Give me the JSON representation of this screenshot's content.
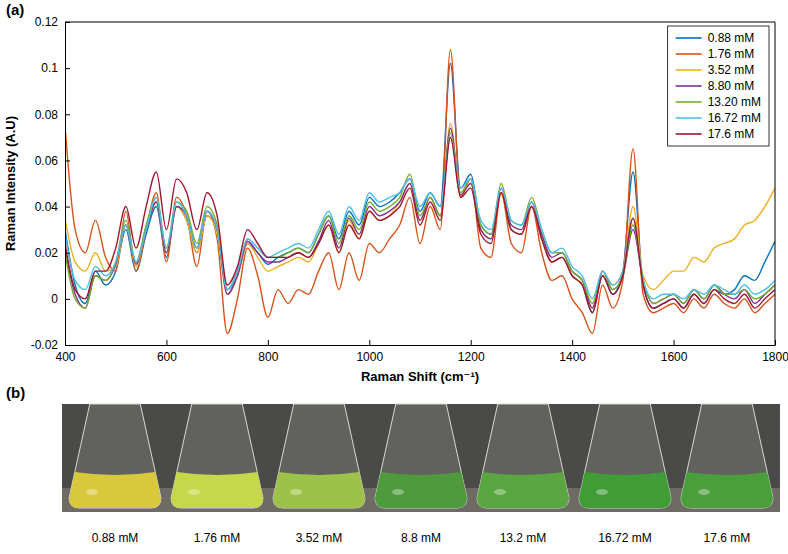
{
  "chart_data": {
    "type": "line",
    "title": "(a)",
    "x_label": "Raman Shift (cm⁻¹)",
    "y_label": "Raman Intensity (A.U)",
    "xlim": [
      400,
      1800
    ],
    "xticks": [
      400,
      600,
      800,
      1000,
      1200,
      1400,
      1600,
      1800
    ],
    "ylim": [
      -0.02,
      0.12
    ],
    "yticks": [
      -0.02,
      0,
      0.02,
      0.04,
      0.06,
      0.08,
      0.1,
      0.12
    ],
    "grid": false,
    "legend": "top-right",
    "x": [
      400,
      420,
      440,
      460,
      480,
      500,
      520,
      540,
      560,
      580,
      600,
      620,
      640,
      660,
      680,
      700,
      720,
      740,
      760,
      780,
      800,
      820,
      840,
      860,
      880,
      900,
      920,
      940,
      960,
      980,
      1000,
      1020,
      1040,
      1060,
      1080,
      1100,
      1120,
      1140,
      1160,
      1180,
      1200,
      1220,
      1240,
      1260,
      1280,
      1300,
      1320,
      1340,
      1360,
      1380,
      1400,
      1420,
      1440,
      1460,
      1480,
      1500,
      1520,
      1540,
      1560,
      1580,
      1600,
      1620,
      1640,
      1660,
      1680,
      1700,
      1720,
      1740,
      1760,
      1780,
      1800
    ],
    "series": [
      {
        "name": "0.88 mM",
        "color": "#0072bd",
        "values": [
          0.03,
          0.006,
          -0.002,
          0.012,
          0.006,
          0.012,
          0.03,
          0.012,
          0.028,
          0.04,
          0.018,
          0.04,
          0.034,
          0.02,
          0.036,
          0.03,
          0.004,
          0.01,
          0.024,
          0.02,
          0.015,
          0.018,
          0.02,
          0.022,
          0.02,
          0.028,
          0.036,
          0.026,
          0.038,
          0.032,
          0.044,
          0.04,
          0.042,
          0.046,
          0.052,
          0.038,
          0.046,
          0.04,
          0.102,
          0.048,
          0.054,
          0.032,
          0.028,
          0.046,
          0.03,
          0.028,
          0.04,
          0.026,
          0.016,
          0.018,
          0.01,
          0.006,
          -0.006,
          0.01,
          0.002,
          0.012,
          0.055,
          0.006,
          -0.004,
          -0.002,
          0.0,
          -0.004,
          0.002,
          -0.002,
          0.004,
          0.002,
          0.004,
          0.01,
          0.008,
          0.016,
          0.025
        ]
      },
      {
        "name": "1.76 mM",
        "color": "#d95319",
        "values": [
          0.075,
          0.03,
          0.02,
          0.034,
          0.018,
          0.012,
          0.038,
          0.012,
          0.03,
          0.046,
          0.016,
          0.044,
          0.036,
          0.014,
          0.038,
          0.026,
          -0.015,
          0.0,
          0.022,
          0.01,
          -0.008,
          0.004,
          -0.002,
          0.004,
          0.002,
          0.012,
          0.02,
          0.004,
          0.02,
          0.008,
          0.024,
          0.02,
          0.026,
          0.032,
          0.044,
          0.024,
          0.04,
          0.03,
          0.108,
          0.044,
          0.052,
          0.022,
          0.018,
          0.046,
          0.024,
          0.02,
          0.04,
          0.02,
          0.008,
          0.01,
          0.0,
          -0.006,
          -0.015,
          0.006,
          -0.004,
          0.008,
          0.065,
          0.002,
          -0.006,
          -0.004,
          -0.002,
          -0.006,
          0.0,
          -0.004,
          0.002,
          -0.002,
          -0.004,
          0.0,
          -0.006,
          -0.002,
          0.002
        ]
      },
      {
        "name": "3.52 mM",
        "color": "#edb120",
        "values": [
          0.035,
          0.016,
          0.012,
          0.02,
          0.012,
          0.014,
          0.032,
          0.014,
          0.03,
          0.042,
          0.02,
          0.04,
          0.034,
          0.02,
          0.036,
          0.028,
          0.002,
          0.01,
          0.024,
          0.018,
          0.012,
          0.014,
          0.016,
          0.018,
          0.016,
          0.024,
          0.032,
          0.02,
          0.034,
          0.026,
          0.038,
          0.034,
          0.036,
          0.042,
          0.05,
          0.034,
          0.044,
          0.036,
          0.076,
          0.046,
          0.05,
          0.03,
          0.026,
          0.046,
          0.03,
          0.028,
          0.04,
          0.026,
          0.016,
          0.018,
          0.01,
          0.006,
          -0.004,
          0.012,
          0.006,
          0.012,
          0.04,
          0.01,
          0.004,
          0.008,
          0.012,
          0.012,
          0.018,
          0.016,
          0.022,
          0.024,
          0.026,
          0.032,
          0.034,
          0.04,
          0.048
        ]
      },
      {
        "name": "8.80 mM",
        "color": "#7e2f8e",
        "values": [
          0.022,
          0.002,
          -0.004,
          0.01,
          0.008,
          0.015,
          0.032,
          0.015,
          0.03,
          0.042,
          0.02,
          0.04,
          0.036,
          0.022,
          0.038,
          0.03,
          0.002,
          0.01,
          0.025,
          0.02,
          0.016,
          0.016,
          0.018,
          0.02,
          0.018,
          0.025,
          0.034,
          0.022,
          0.035,
          0.028,
          0.04,
          0.036,
          0.038,
          0.042,
          0.05,
          0.034,
          0.044,
          0.036,
          0.074,
          0.045,
          0.05,
          0.03,
          0.026,
          0.048,
          0.032,
          0.03,
          0.042,
          0.028,
          0.018,
          0.02,
          0.012,
          0.008,
          -0.004,
          0.012,
          0.004,
          0.01,
          0.03,
          0.008,
          -0.002,
          0.0,
          0.002,
          -0.002,
          0.004,
          0.0,
          0.006,
          0.002,
          0.0,
          0.004,
          -0.002,
          0.002,
          0.006
        ]
      },
      {
        "name": "13.20 mM",
        "color": "#77ac30",
        "values": [
          0.02,
          0.0,
          -0.004,
          0.01,
          0.008,
          0.016,
          0.034,
          0.016,
          0.032,
          0.044,
          0.022,
          0.042,
          0.038,
          0.024,
          0.04,
          0.032,
          0.004,
          0.012,
          0.026,
          0.022,
          0.018,
          0.018,
          0.02,
          0.022,
          0.02,
          0.028,
          0.036,
          0.024,
          0.036,
          0.03,
          0.042,
          0.038,
          0.04,
          0.044,
          0.054,
          0.036,
          0.044,
          0.036,
          0.072,
          0.046,
          0.052,
          0.032,
          0.028,
          0.05,
          0.034,
          0.032,
          0.044,
          0.03,
          0.02,
          0.02,
          0.012,
          0.008,
          -0.002,
          0.012,
          0.004,
          0.01,
          0.032,
          0.008,
          -0.002,
          0.0,
          0.002,
          -0.002,
          0.004,
          0.0,
          0.006,
          0.002,
          0.002,
          0.004,
          0.0,
          0.002,
          0.006
        ]
      },
      {
        "name": "16.72 mM",
        "color": "#4dbeee",
        "values": [
          0.028,
          0.008,
          0.004,
          0.014,
          0.01,
          0.016,
          0.032,
          0.016,
          0.03,
          0.044,
          0.022,
          0.042,
          0.036,
          0.022,
          0.038,
          0.03,
          0.004,
          0.012,
          0.026,
          0.022,
          0.018,
          0.02,
          0.022,
          0.024,
          0.022,
          0.03,
          0.038,
          0.028,
          0.04,
          0.034,
          0.046,
          0.042,
          0.044,
          0.046,
          0.052,
          0.04,
          0.046,
          0.04,
          0.07,
          0.048,
          0.052,
          0.034,
          0.03,
          0.048,
          0.034,
          0.032,
          0.042,
          0.03,
          0.02,
          0.022,
          0.014,
          0.01,
          0.0,
          0.012,
          0.006,
          0.012,
          0.035,
          0.008,
          0.0,
          0.002,
          0.002,
          0.0,
          0.004,
          0.002,
          0.006,
          0.004,
          0.002,
          0.006,
          0.002,
          0.004,
          0.008
        ]
      },
      {
        "name": "17.6 mM",
        "color": "#a2142f",
        "values": [
          0.024,
          0.004,
          0.0,
          0.012,
          0.012,
          0.022,
          0.04,
          0.022,
          0.04,
          0.055,
          0.03,
          0.052,
          0.046,
          0.03,
          0.046,
          0.036,
          0.006,
          0.014,
          0.03,
          0.024,
          0.018,
          0.018,
          0.018,
          0.02,
          0.018,
          0.024,
          0.032,
          0.02,
          0.032,
          0.026,
          0.038,
          0.034,
          0.036,
          0.04,
          0.048,
          0.032,
          0.042,
          0.034,
          0.07,
          0.044,
          0.048,
          0.028,
          0.024,
          0.046,
          0.03,
          0.028,
          0.04,
          0.026,
          0.016,
          0.018,
          0.01,
          0.006,
          -0.006,
          0.01,
          0.002,
          0.01,
          0.035,
          0.006,
          -0.004,
          -0.002,
          0.0,
          -0.004,
          0.002,
          -0.002,
          0.004,
          0.0,
          -0.002,
          0.002,
          -0.004,
          0.0,
          0.004
        ]
      }
    ]
  },
  "photo": {
    "title": "(b)",
    "captions": [
      "0.88 mM",
      "1.76 mM",
      "3.52 mM",
      "8.8 mM",
      "13.2 mM",
      "16.72 mM",
      "17.6 mM"
    ],
    "colors": [
      "#d8c83c",
      "#c4d84a",
      "#9cc24a",
      "#4e9a3c",
      "#5aa640",
      "#3f9c36",
      "#4a9e3c"
    ]
  }
}
